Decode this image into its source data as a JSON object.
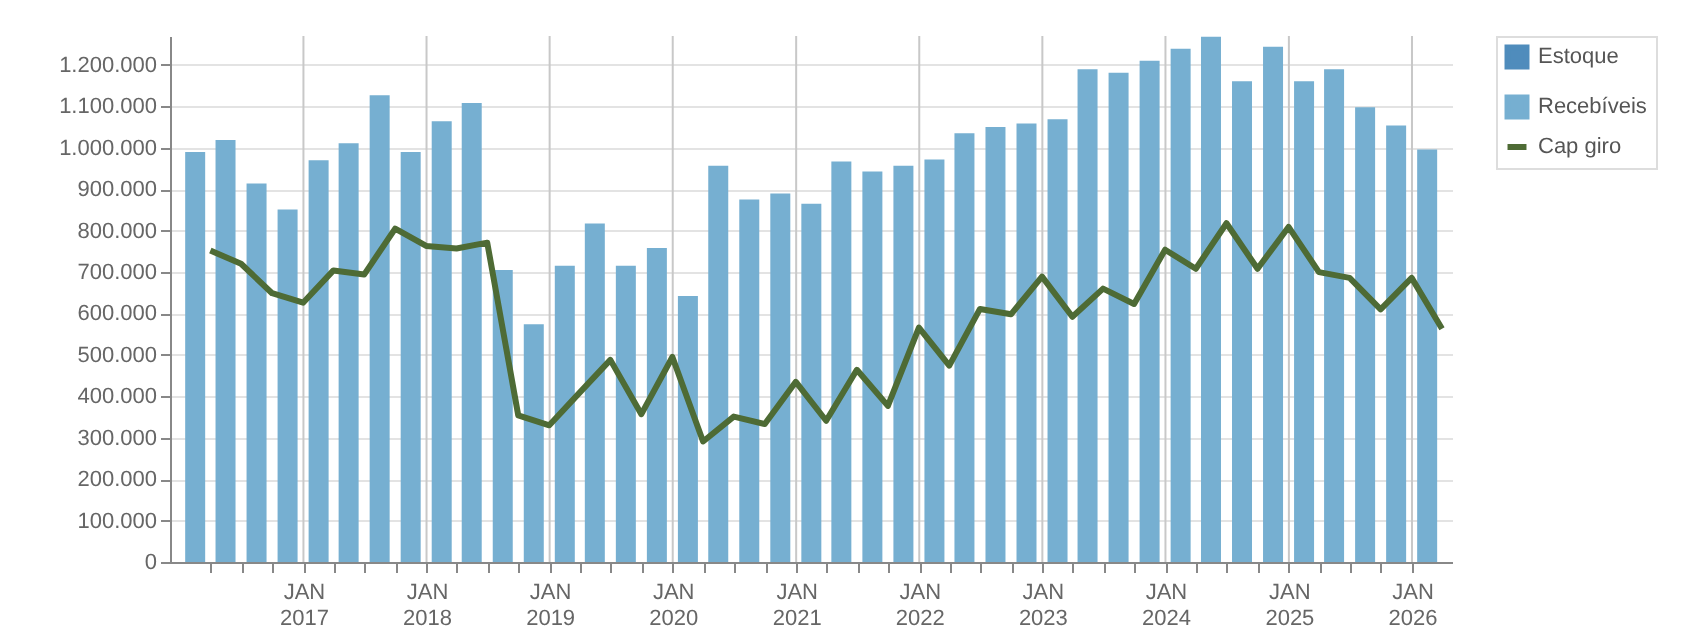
{
  "chart_data": {
    "type": "bar",
    "grid": true,
    "legend": "right",
    "xlim": [
      "2016-01-01",
      "2026-03-31"
    ],
    "xticks": [
      {
        "value": "2016-04-01",
        "label": null
      },
      {
        "value": "2016-07-01",
        "label": null
      },
      {
        "value": "2016-10-01",
        "label": null
      },
      {
        "value": "2017-01-01",
        "label": "JAN\n2017"
      },
      {
        "value": "2017-04-01",
        "label": null
      },
      {
        "value": "2017-07-01",
        "label": null
      },
      {
        "value": "2017-10-01",
        "label": null
      },
      {
        "value": "2018-01-01",
        "label": "JAN\n2018"
      },
      {
        "value": "2018-04-01",
        "label": null
      },
      {
        "value": "2018-07-01",
        "label": null
      },
      {
        "value": "2018-10-01",
        "label": null
      },
      {
        "value": "2019-01-01",
        "label": "JAN\n2019"
      },
      {
        "value": "2019-04-01",
        "label": null
      },
      {
        "value": "2019-07-01",
        "label": null
      },
      {
        "value": "2019-10-01",
        "label": null
      },
      {
        "value": "2020-01-01",
        "label": "JAN\n2020"
      },
      {
        "value": "2020-04-01",
        "label": null
      },
      {
        "value": "2020-07-01",
        "label": null
      },
      {
        "value": "2020-10-01",
        "label": null
      },
      {
        "value": "2021-01-01",
        "label": "JAN\n2021"
      },
      {
        "value": "2021-04-01",
        "label": null
      },
      {
        "value": "2021-07-01",
        "label": null
      },
      {
        "value": "2021-10-01",
        "label": null
      },
      {
        "value": "2022-01-01",
        "label": "JAN\n2022"
      },
      {
        "value": "2022-04-01",
        "label": null
      },
      {
        "value": "2022-07-01",
        "label": null
      },
      {
        "value": "2022-10-01",
        "label": null
      },
      {
        "value": "2023-01-01",
        "label": "JAN\n2023"
      },
      {
        "value": "2023-04-01",
        "label": null
      },
      {
        "value": "2023-07-01",
        "label": null
      },
      {
        "value": "2023-10-01",
        "label": null
      },
      {
        "value": "2024-01-01",
        "label": "JAN\n2024"
      },
      {
        "value": "2024-04-01",
        "label": null
      },
      {
        "value": "2024-07-01",
        "label": null
      },
      {
        "value": "2024-10-01",
        "label": null
      },
      {
        "value": "2025-01-01",
        "label": "JAN\n2025"
      },
      {
        "value": "2025-04-01",
        "label": null
      },
      {
        "value": "2025-07-01",
        "label": null
      },
      {
        "value": "2025-10-01",
        "label": null
      },
      {
        "value": "2026-01-01",
        "label": "JAN\n2026"
      }
    ],
    "ylim": [
      0,
      1270000
    ],
    "yticks": [
      {
        "value": 0,
        "label": "0"
      },
      {
        "value": 100000,
        "label": "100.000"
      },
      {
        "value": 200000,
        "label": "200.000"
      },
      {
        "value": 300000,
        "label": "300.000"
      },
      {
        "value": 400000,
        "label": "400.000"
      },
      {
        "value": 500000,
        "label": "500.000"
      },
      {
        "value": 600000,
        "label": "600.000"
      },
      {
        "value": 700000,
        "label": "700.000"
      },
      {
        "value": 800000,
        "label": "800.000"
      },
      {
        "value": 900000,
        "label": "900.000"
      },
      {
        "value": 1000000,
        "label": "1.000.000"
      },
      {
        "value": 1100000,
        "label": "1.100.000"
      },
      {
        "value": 1200000,
        "label": "1.200.000"
      }
    ],
    "series": [
      {
        "name": "Estoque",
        "color": "#4f8cbc"
      },
      {
        "name": "Recebíveis",
        "color": "#76afd1",
        "x": [
          "2016-02-15",
          "2016-05-15",
          "2016-08-15",
          "2016-11-15",
          "2017-02-15",
          "2017-05-15",
          "2017-08-15",
          "2017-11-15",
          "2018-02-15",
          "2018-05-15",
          "2018-08-15",
          "2018-11-15",
          "2019-02-15",
          "2019-05-15",
          "2019-08-15",
          "2019-11-15",
          "2020-02-15",
          "2020-05-15",
          "2020-08-15",
          "2020-11-15",
          "2021-02-15",
          "2021-05-15",
          "2021-08-15",
          "2021-11-15",
          "2022-02-15",
          "2022-05-15",
          "2022-08-15",
          "2022-11-15",
          "2023-02-15",
          "2023-05-15",
          "2023-08-15",
          "2023-11-15",
          "2024-02-15",
          "2024-05-15",
          "2024-08-15",
          "2024-11-15",
          "2025-02-15",
          "2025-05-15",
          "2025-08-15",
          "2025-11-15",
          "2026-02-15"
        ],
        "values": [
          990000,
          1019000,
          914000,
          851000,
          970000,
          1011000,
          1127000,
          990000,
          1064000,
          1108000,
          705000,
          574000,
          715000,
          817000,
          715000,
          758000,
          642000,
          957000,
          875000,
          890000,
          865000,
          967000,
          943000,
          957000,
          972000,
          1035000,
          1050000,
          1059000,
          1069000,
          1190000,
          1181000,
          1210000,
          1239000,
          1268000,
          1161000,
          1244000,
          1161000,
          1190000,
          1098000,
          1054000,
          996000
        ]
      },
      {
        "name": "Cap giro",
        "type": "line",
        "color": "#4e6b35",
        "x": [
          "2016-03-31",
          "2016-06-30",
          "2016-09-30",
          "2016-12-31",
          "2017-03-31",
          "2017-06-30",
          "2017-09-30",
          "2017-12-31",
          "2018-03-31",
          "2018-06-30",
          "2018-09-30",
          "2018-12-31",
          "2019-03-31",
          "2019-06-30",
          "2019-09-30",
          "2019-12-31",
          "2020-03-31",
          "2020-06-30",
          "2020-09-30",
          "2020-12-31",
          "2021-03-31",
          "2021-06-30",
          "2021-09-30",
          "2021-12-31",
          "2022-03-31",
          "2022-06-30",
          "2022-09-30",
          "2022-12-31",
          "2023-03-31",
          "2023-06-30",
          "2023-09-30",
          "2023-12-31",
          "2024-03-31",
          "2024-06-30",
          "2024-09-30",
          "2024-12-31",
          "2025-03-31",
          "2025-06-30",
          "2025-09-30",
          "2025-12-31",
          "2026-03-31"
        ],
        "values": [
          752000,
          720000,
          649000,
          626000,
          704000,
          694000,
          805000,
          763000,
          757000,
          771000,
          354000,
          330000,
          409000,
          488000,
          357000,
          495000,
          291000,
          351000,
          333000,
          435000,
          341000,
          464000,
          377000,
          566000,
          474000,
          611000,
          598000,
          689000,
          592000,
          660000,
          623000,
          754000,
          708000,
          818000,
          708000,
          809000,
          700000,
          686000,
          610000,
          686000,
          563000
        ]
      }
    ]
  }
}
